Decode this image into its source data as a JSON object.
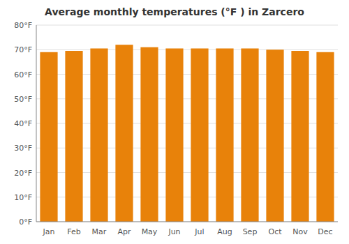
{
  "chart_data": {
    "type": "bar",
    "title": "Average monthly temperatures (°F ) in Zarcero",
    "categories": [
      "Jan",
      "Feb",
      "Mar",
      "Apr",
      "May",
      "Jun",
      "Jul",
      "Aug",
      "Sep",
      "Oct",
      "Nov",
      "Dec"
    ],
    "values": [
      69,
      69.5,
      70.5,
      72,
      71,
      70.5,
      70.5,
      70.5,
      70.5,
      70,
      69.5,
      69
    ],
    "color": "#E8820A",
    "ylim": [
      0,
      80
    ],
    "yticks": [
      {
        "value": 0,
        "label": "0°F"
      },
      {
        "value": 10,
        "label": "10°F"
      },
      {
        "value": 20,
        "label": "20°F"
      },
      {
        "value": 30,
        "label": "30°F"
      },
      {
        "value": 40,
        "label": "40°F"
      },
      {
        "value": 50,
        "label": "50°F"
      },
      {
        "value": 60,
        "label": "60°F"
      },
      {
        "value": 70,
        "label": "70°F"
      },
      {
        "value": 80,
        "label": "80°F"
      }
    ],
    "grid": true
  }
}
